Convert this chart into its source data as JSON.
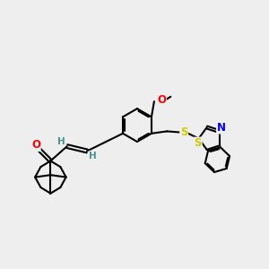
{
  "bg_color": "#eeeeee",
  "line_color": "#000000",
  "bond_width": 1.5,
  "dbo": 0.055,
  "atom_colors": {
    "O": "#ff0000",
    "N": "#0000ff",
    "S": "#cccc00",
    "H": "#4a9090",
    "C": "#000000"
  }
}
